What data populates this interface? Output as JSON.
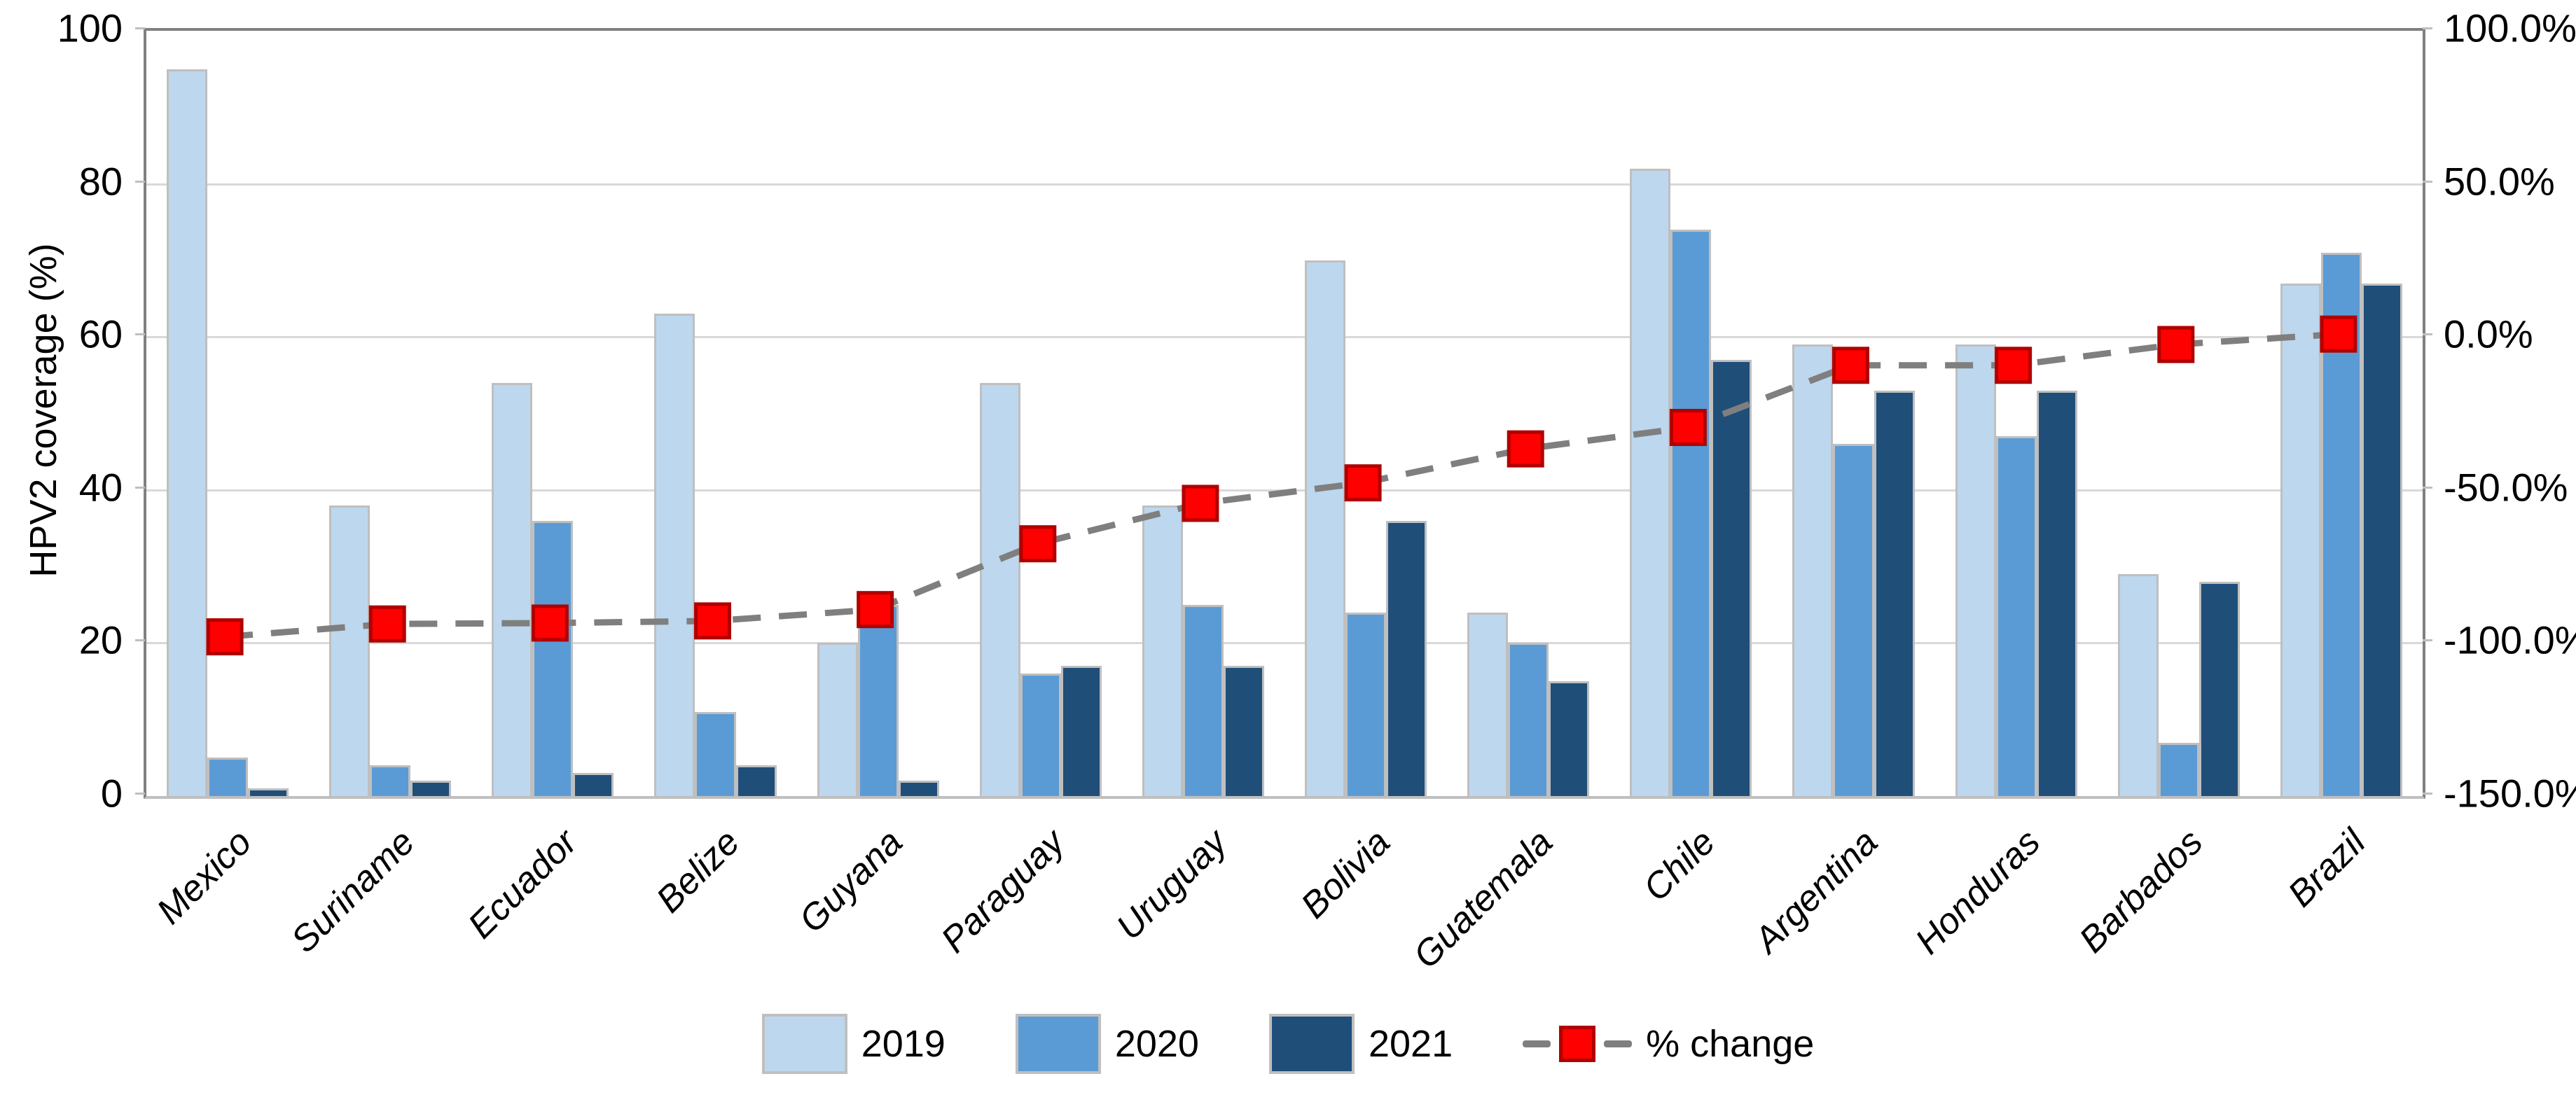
{
  "chart_data": {
    "type": "bar",
    "title": "",
    "ylabel_left": "HPV2 coverage (%)",
    "categories": [
      "Mexico",
      "Suriname",
      "Ecuador",
      "Belize",
      "Guyana",
      "Paraguay",
      "Uruguay",
      "Bolivia",
      "Guatemala",
      "Chile",
      "Argentina",
      "Honduras",
      "Barbados",
      "Brazil"
    ],
    "series": [
      {
        "name": "2019",
        "color": "#BDD7EE",
        "values": [
          95,
          38,
          54,
          63,
          20,
          54,
          38,
          70,
          24,
          82,
          59,
          59,
          29,
          67
        ]
      },
      {
        "name": "2020",
        "color": "#5B9BD5",
        "values": [
          5,
          4,
          36,
          11,
          25,
          16,
          25,
          24,
          20,
          74,
          46,
          47,
          7,
          71
        ]
      },
      {
        "name": "2021",
        "color": "#1F4E79",
        "values": [
          1,
          2,
          3,
          4,
          2,
          17,
          17,
          36,
          15,
          57,
          53,
          53,
          28,
          67
        ]
      }
    ],
    "line_series": {
      "name": "% change",
      "marker_color": "#FF0000",
      "marker_border_color": "#B00000",
      "line_color": "#7F7F7F",
      "values_pct": [
        -98.9,
        -94.7,
        -94.4,
        -93.7,
        -90.0,
        -68.5,
        -55.3,
        -48.6,
        -37.5,
        -30.5,
        -10.2,
        -10.2,
        -3.4,
        0.0
      ]
    },
    "left_axis": {
      "min": 0,
      "max": 100,
      "ticks": [
        "0",
        "20",
        "40",
        "60",
        "80",
        "100"
      ]
    },
    "right_axis": {
      "min": -150,
      "max": 100,
      "ticks": [
        "100.0%",
        "50.0%",
        "0.0%",
        "-50.0%",
        "-100.0%",
        "-150.0%"
      ]
    },
    "legend": [
      "2019",
      "2020",
      "2021",
      "% change"
    ],
    "grid": true,
    "legend_position": "bottom"
  }
}
